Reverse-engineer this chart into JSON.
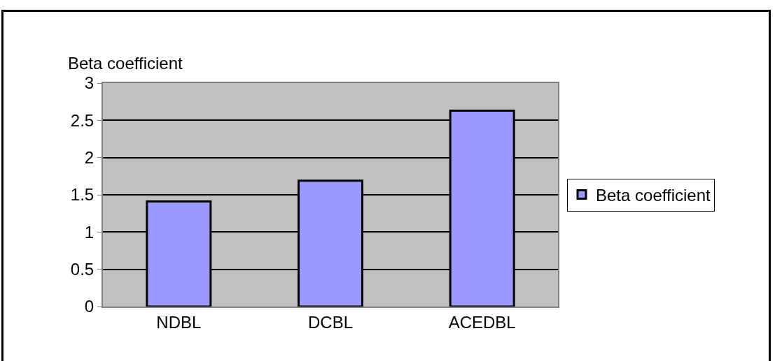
{
  "chart_data": {
    "type": "bar",
    "ylabel": "Beta coefficient",
    "categories": [
      "NDBL",
      "DCBL",
      "ACEDBL"
    ],
    "series": [
      {
        "name": "Beta coefficient",
        "color": "#9999ff",
        "values": [
          1.41,
          1.69,
          2.63
        ]
      }
    ],
    "ylim": [
      0,
      3
    ],
    "yticks": [
      0,
      0.5,
      1,
      1.5,
      2,
      2.5,
      3
    ],
    "grid": "y",
    "legend": "right"
  }
}
